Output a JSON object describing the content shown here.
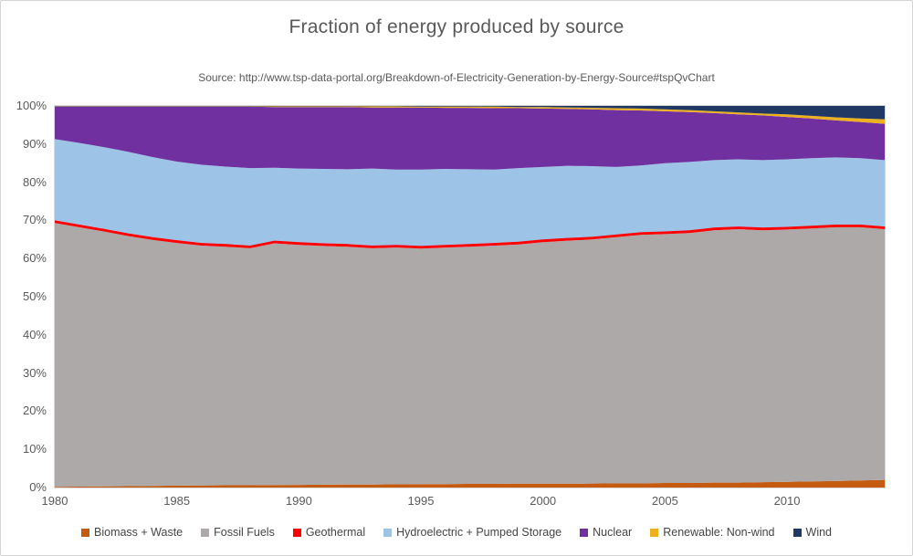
{
  "title": "Fraction of energy produced by source",
  "subtitle": "Source: http://www.tsp-data-portal.org/Breakdown-of-Electricity-Generation-by-Energy-Source#tspQvChart",
  "chart_data": {
    "type": "area",
    "stacked": true,
    "title": "Fraction of energy produced by source",
    "xlabel": "",
    "ylabel": "",
    "grid": false,
    "legend_position": "bottom",
    "ylim": [
      0,
      100
    ],
    "y_unit": "%",
    "x": [
      1980,
      1981,
      1982,
      1983,
      1984,
      1985,
      1986,
      1987,
      1988,
      1989,
      1990,
      1991,
      1992,
      1993,
      1994,
      1995,
      1996,
      1997,
      1998,
      1999,
      2000,
      2001,
      2002,
      2003,
      2004,
      2005,
      2006,
      2007,
      2008,
      2009,
      2010,
      2011,
      2012,
      2013,
      2014
    ],
    "x_ticks": [
      1980,
      1985,
      1990,
      1995,
      2000,
      2005,
      2010
    ],
    "y_ticks": [
      "100%",
      "90%",
      "80%",
      "70%",
      "60%",
      "50%",
      "40%",
      "30%",
      "20%",
      "10%",
      "0%"
    ],
    "series": [
      {
        "name": "Biomass + Waste",
        "color": "#C55A11",
        "values": [
          0.2,
          0.25,
          0.3,
          0.35,
          0.4,
          0.5,
          0.55,
          0.6,
          0.6,
          0.65,
          0.7,
          0.75,
          0.8,
          0.8,
          0.85,
          0.9,
          0.9,
          0.95,
          0.95,
          1.0,
          1.0,
          1.0,
          1.05,
          1.1,
          1.1,
          1.2,
          1.2,
          1.3,
          1.3,
          1.4,
          1.5,
          1.6,
          1.7,
          1.85,
          2.0
        ]
      },
      {
        "name": "Fossil Fuels",
        "color": "#ACA9A8",
        "values": [
          69.1,
          67.95,
          66.8,
          65.55,
          64.5,
          63.6,
          62.85,
          62.5,
          62.1,
          63.35,
          62.9,
          62.55,
          62.3,
          61.9,
          62.05,
          61.7,
          62.0,
          62.15,
          62.45,
          62.7,
          63.3,
          63.7,
          63.95,
          64.5,
          65.1,
          65.2,
          65.5,
          66.1,
          66.4,
          66.0,
          66.1,
          66.3,
          66.5,
          66.35,
          65.7
        ]
      },
      {
        "name": "Geothermal",
        "color": "#FF0000",
        "values": [
          0.7,
          0.7,
          0.7,
          0.7,
          0.7,
          0.7,
          0.7,
          0.7,
          0.7,
          0.7,
          0.7,
          0.7,
          0.7,
          0.7,
          0.7,
          0.7,
          0.7,
          0.7,
          0.7,
          0.7,
          0.7,
          0.7,
          0.7,
          0.7,
          0.7,
          0.7,
          0.7,
          0.7,
          0.7,
          0.7,
          0.7,
          0.7,
          0.7,
          0.7,
          0.7
        ]
      },
      {
        "name": "Hydroelectric + Pumped Storage",
        "color": "#9DC3E6",
        "values": [
          21.3,
          21.4,
          21.4,
          21.4,
          21.0,
          20.6,
          20.5,
          20.3,
          20.3,
          19.1,
          19.3,
          19.5,
          19.6,
          20.2,
          19.7,
          20.0,
          19.9,
          19.6,
          19.2,
          19.3,
          19.0,
          18.9,
          18.5,
          17.7,
          17.5,
          17.9,
          17.9,
          17.7,
          17.6,
          17.7,
          17.7,
          17.7,
          17.6,
          17.4,
          17.4
        ]
      },
      {
        "name": "Nuclear",
        "color": "#7030A0",
        "values": [
          8.5,
          9.5,
          10.6,
          11.8,
          13.2,
          14.4,
          15.2,
          15.7,
          16.1,
          15.9,
          16.1,
          16.2,
          16.3,
          16.0,
          16.3,
          16.3,
          16.0,
          16.1,
          16.1,
          15.7,
          15.3,
          14.9,
          14.9,
          14.9,
          14.4,
          13.6,
          13.1,
          12.3,
          11.8,
          11.7,
          11.1,
          10.4,
          9.7,
          9.5,
          9.5
        ]
      },
      {
        "name": "Renewable: Non-wind",
        "color": "#EDB120",
        "values": [
          0.1,
          0.1,
          0.1,
          0.1,
          0.1,
          0.1,
          0.1,
          0.1,
          0.1,
          0.2,
          0.2,
          0.2,
          0.2,
          0.3,
          0.3,
          0.2,
          0.3,
          0.3,
          0.4,
          0.3,
          0.4,
          0.4,
          0.4,
          0.5,
          0.5,
          0.5,
          0.5,
          0.5,
          0.5,
          0.5,
          0.7,
          0.7,
          0.8,
          0.9,
          1.2
        ]
      },
      {
        "name": "Wind",
        "color": "#203864",
        "values": [
          0.1,
          0.1,
          0.1,
          0.1,
          0.1,
          0.1,
          0.1,
          0.1,
          0.1,
          0.1,
          0.1,
          0.1,
          0.1,
          0.1,
          0.1,
          0.2,
          0.2,
          0.2,
          0.2,
          0.3,
          0.3,
          0.4,
          0.5,
          0.6,
          0.7,
          0.9,
          1.1,
          1.4,
          1.7,
          2.0,
          2.2,
          2.6,
          3.0,
          3.3,
          3.5
        ]
      }
    ]
  },
  "colors": {
    "text": "#595959",
    "legend_text": "#444444",
    "plot_border": "#d9d9d9",
    "frame_border": "#d4d4d4"
  }
}
